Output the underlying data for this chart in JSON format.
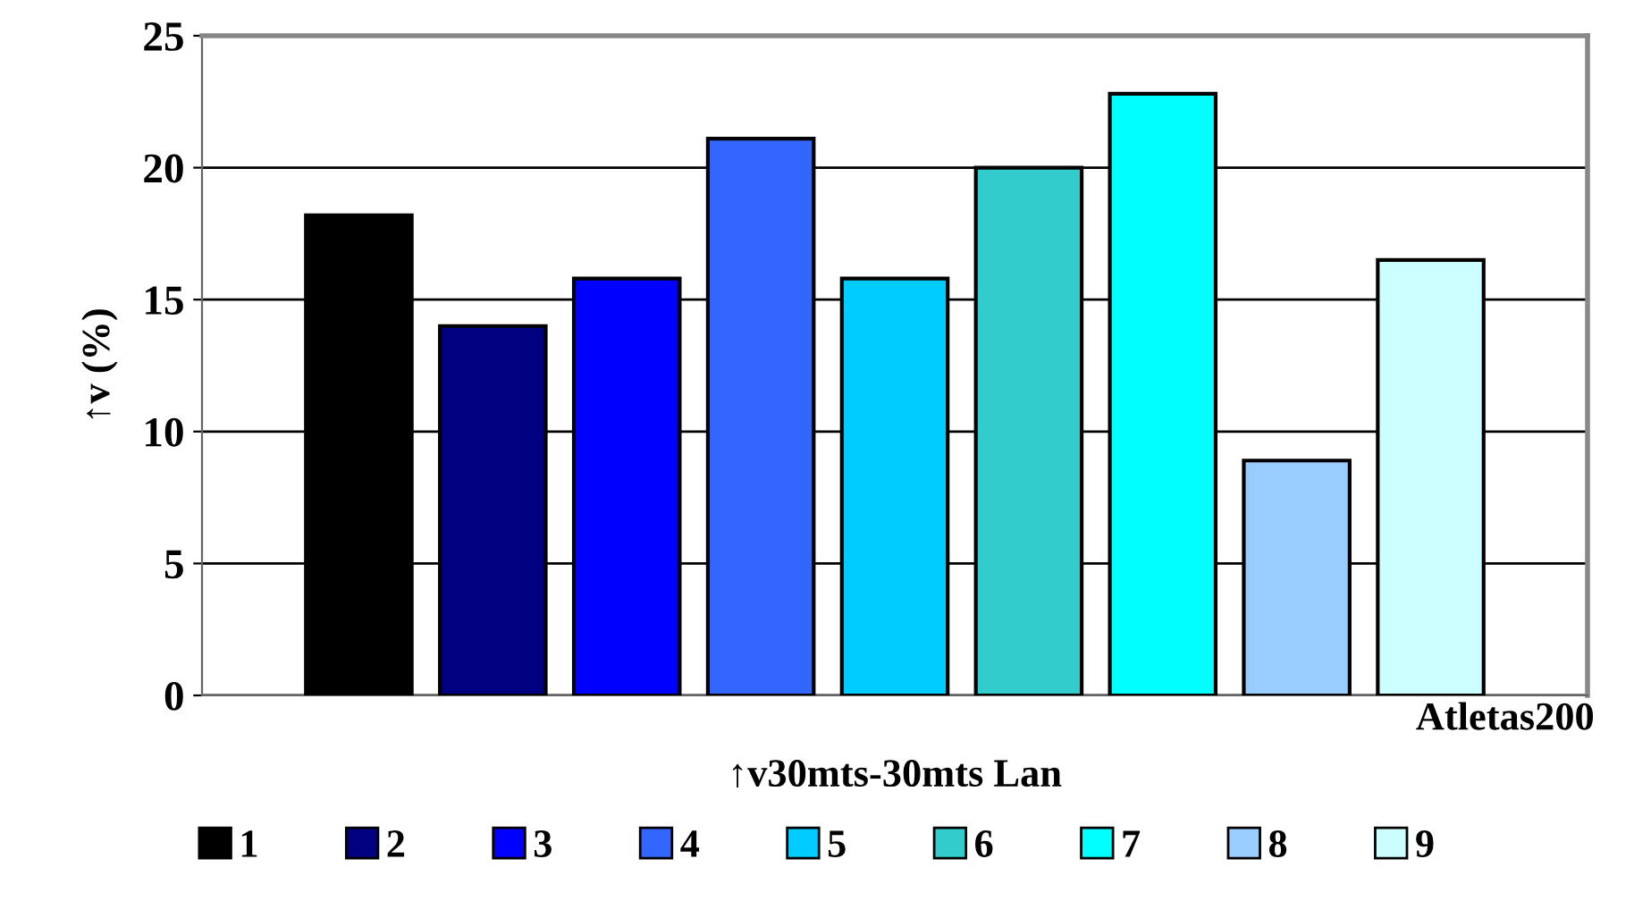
{
  "chart_data": {
    "type": "bar",
    "categories": [
      "Atletas200"
    ],
    "xlabel": "↑v30mts-30mts Lan",
    "ylabel": "↑v (%)",
    "series": [
      {
        "name": "1",
        "color": "#000000",
        "values": [
          18.2
        ]
      },
      {
        "name": "2",
        "color": "#000080",
        "values": [
          14.0
        ]
      },
      {
        "name": "3",
        "color": "#0000ff",
        "values": [
          15.8
        ]
      },
      {
        "name": "4",
        "color": "#3366ff",
        "values": [
          21.1
        ]
      },
      {
        "name": "5",
        "color": "#00ccff",
        "values": [
          15.8
        ]
      },
      {
        "name": "6",
        "color": "#33cccc",
        "values": [
          20.0
        ]
      },
      {
        "name": "7",
        "color": "#00ffff",
        "values": [
          22.8
        ]
      },
      {
        "name": "8",
        "color": "#99ccff",
        "values": [
          8.9
        ]
      },
      {
        "name": "9",
        "color": "#ccffff",
        "values": [
          16.5
        ]
      }
    ],
    "ylim": [
      0,
      25
    ],
    "yticks": [
      0,
      5,
      10,
      15,
      20,
      25
    ],
    "grid": "y",
    "legend": "bottom"
  }
}
